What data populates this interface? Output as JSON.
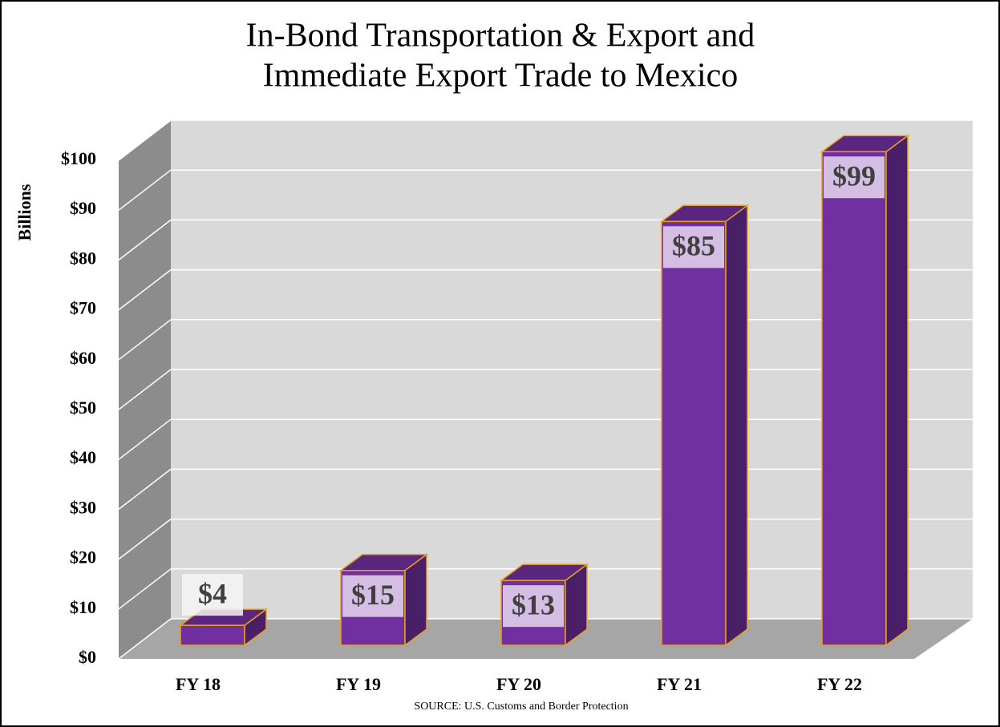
{
  "chart_data": {
    "type": "bar3d",
    "title": [
      "In-Bond Transportation & Export and",
      "Immediate Export Trade to Mexico"
    ],
    "y_label": "Billions",
    "source": "SOURCE: U.S. Customs and Border Protection",
    "categories": [
      "FY 18",
      "FY 19",
      "FY 20",
      "FY 21",
      "FY 22"
    ],
    "values": [
      4,
      15,
      13,
      85,
      99
    ],
    "value_labels": [
      "$4",
      "$15",
      "$13",
      "$85",
      "$99"
    ],
    "color": "#7030a0",
    "ylim": [
      0,
      100
    ],
    "yticks": [
      {
        "value": 0,
        "label": "$0"
      },
      {
        "value": 10,
        "label": "$10"
      },
      {
        "value": 20,
        "label": "$20"
      },
      {
        "value": 30,
        "label": "$30"
      },
      {
        "value": 40,
        "label": "$40"
      },
      {
        "value": 50,
        "label": "$50"
      },
      {
        "value": 60,
        "label": "$60"
      },
      {
        "value": 70,
        "label": "$70"
      },
      {
        "value": 80,
        "label": "$80"
      },
      {
        "value": 90,
        "label": "$90"
      },
      {
        "value": 100,
        "label": "$100"
      }
    ],
    "grid": true
  }
}
